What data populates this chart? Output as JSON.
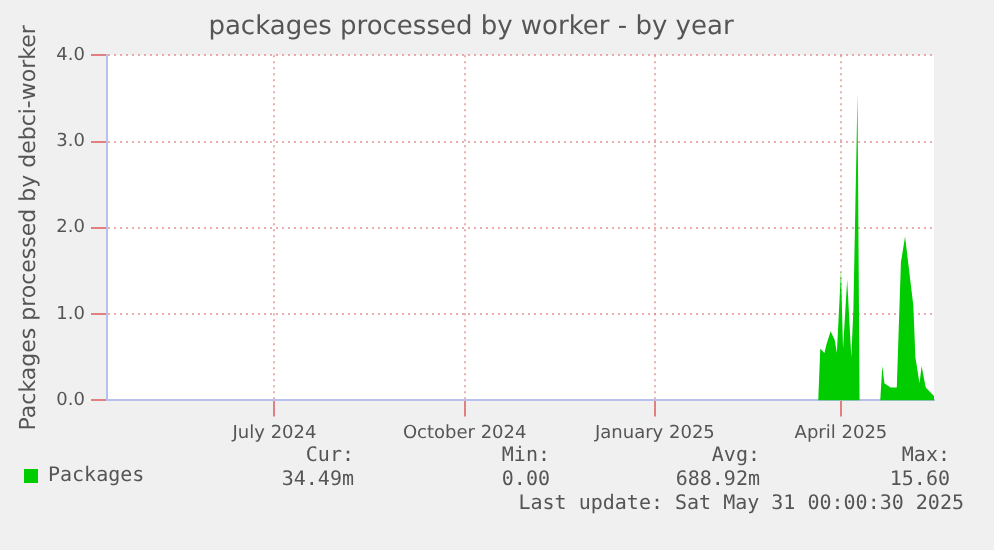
{
  "chart_data": {
    "type": "area",
    "title": "packages processed by worker - by year",
    "ylabel": "Packages processed by debci-worker",
    "x": [
      "2024-04-26",
      "2025-04-05",
      "2025-04-06",
      "2025-04-08",
      "2025-04-09",
      "2025-04-11",
      "2025-04-13",
      "2025-04-14",
      "2025-04-16",
      "2025-04-17",
      "2025-04-19",
      "2025-04-21",
      "2025-04-22",
      "2025-04-24",
      "2025-04-25",
      "2025-05-05",
      "2025-05-06",
      "2025-05-07",
      "2025-05-10",
      "2025-05-13",
      "2025-05-15",
      "2025-05-17",
      "2025-05-19",
      "2025-05-21",
      "2025-05-22",
      "2025-05-24",
      "2025-05-25",
      "2025-05-27",
      "2025-05-29",
      "2025-05-31"
    ],
    "series": [
      {
        "name": "Packages",
        "color": "#00cc00",
        "values": [
          0,
          0,
          0.6,
          0.55,
          0.65,
          0.8,
          0.7,
          0.55,
          1.5,
          0.6,
          1.4,
          0.5,
          1.05,
          3.55,
          0,
          0,
          0.4,
          0.2,
          0.15,
          0.15,
          1.6,
          1.9,
          1.5,
          1.1,
          0.5,
          0.2,
          0.4,
          0.15,
          0.1,
          0.05
        ]
      }
    ],
    "xlim": [
      "2024-04-26",
      "2025-05-31"
    ],
    "xticks": [
      {
        "value": "2024-07-16",
        "label": "July 2024"
      },
      {
        "value": "2024-10-16",
        "label": "October 2024"
      },
      {
        "value": "2025-01-16",
        "label": "January 2025"
      },
      {
        "value": "2025-04-16",
        "label": "April 2025"
      }
    ],
    "ylim": [
      0,
      4
    ],
    "yticks": [
      {
        "value": 0,
        "label": "0.0"
      },
      {
        "value": 1,
        "label": "1.0"
      },
      {
        "value": 2,
        "label": "2.0"
      },
      {
        "value": 3,
        "label": "3.0"
      },
      {
        "value": 4,
        "label": "4.0"
      }
    ],
    "grid": true,
    "legend": "bottom",
    "annotations": [
      "Cur:",
      "34.49m",
      "Min:",
      "0.00",
      "Avg:",
      "688.92m",
      "Max:",
      "15.60",
      "Last update: Sat May 31 00:00:30 2025"
    ]
  }
}
